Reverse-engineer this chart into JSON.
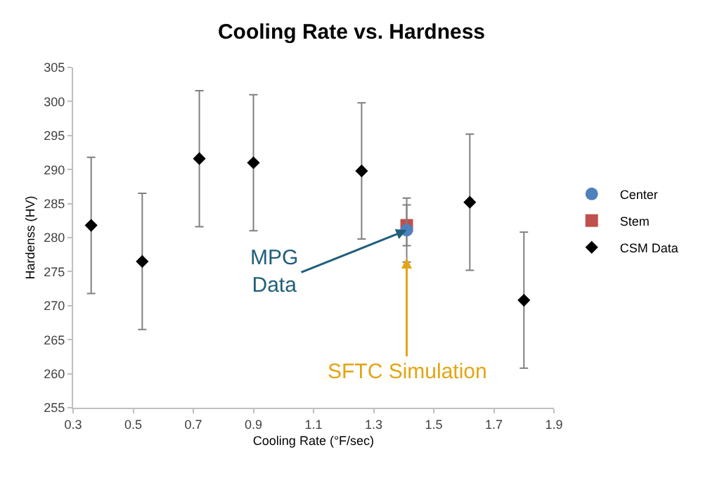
{
  "chart_data": {
    "type": "scatter",
    "title": "Cooling Rate vs. Hardness",
    "xlabel": "Cooling Rate (°F/sec)",
    "ylabel": "Hardenss (HV)",
    "xlim": [
      0.3,
      1.9
    ],
    "xticks": [
      {
        "value": 0.3,
        "label": "0.3"
      },
      {
        "value": 0.5,
        "label": "0.5"
      },
      {
        "value": 0.7,
        "label": "0.7"
      },
      {
        "value": 0.9,
        "label": "0.9"
      },
      {
        "value": 1.1,
        "label": "1.1"
      },
      {
        "value": 1.3,
        "label": "1.3"
      },
      {
        "value": 1.5,
        "label": "1.5"
      },
      {
        "value": 1.7,
        "label": "1.7"
      },
      {
        "value": 1.9,
        "label": "1.9"
      }
    ],
    "ylim": [
      255,
      305
    ],
    "yticks": [
      255,
      260,
      265,
      270,
      275,
      280,
      285,
      290,
      295,
      300,
      305
    ],
    "legend": "right",
    "series": [
      {
        "name": "Center",
        "color": "#4f81bd",
        "marker": "circle",
        "x": [
          1.41
        ],
        "values": [
          281.1
        ],
        "errors": [
          4.7
        ]
      },
      {
        "name": "Stem",
        "color": "#c0504d",
        "marker": "square",
        "x": [
          1.41
        ],
        "values": [
          281.8
        ],
        "errors": [
          3
        ]
      },
      {
        "name": "CSM Data",
        "color": "#000000",
        "marker": "diamond",
        "x": [
          0.36,
          0.53,
          0.72,
          0.9,
          1.26,
          1.62,
          1.8
        ],
        "values": [
          281.8,
          276.5,
          291.6,
          291.0,
          289.8,
          285.2,
          270.8
        ],
        "errors": [
          10,
          10,
          10,
          10,
          10,
          10,
          10
        ]
      }
    ],
    "annotations": [
      {
        "text": "MPG Data",
        "x": 1.41,
        "y": 281.1
      },
      {
        "text": "SFTC Simulation",
        "x": 1.41,
        "y": 277
      }
    ]
  }
}
